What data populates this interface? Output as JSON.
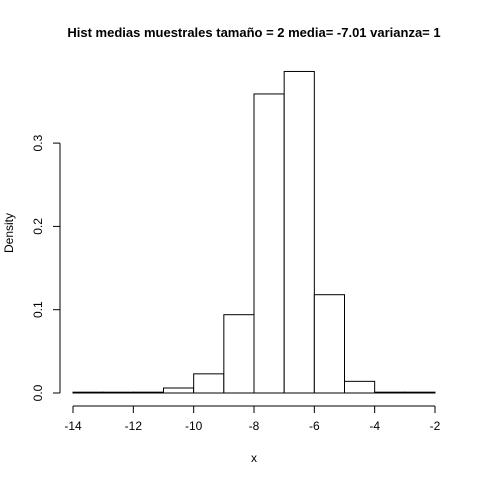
{
  "chart_data": {
    "type": "bar",
    "title": "Hist medias muestrales  tamaño =  2 media= -7.01 varianza= 1",
    "xlabel": "x",
    "ylabel": "Density",
    "xlim": [
      -14,
      -2
    ],
    "ylim": [
      0,
      0.3
    ],
    "x_ticks": [
      "-14",
      "-12",
      "-10",
      "-8",
      "-6",
      "-4",
      "-2"
    ],
    "y_ticks": [
      "0.0",
      "0.1",
      "0.2",
      "0.3"
    ],
    "bins": [
      {
        "start": -14,
        "end": -13,
        "density": 0.001
      },
      {
        "start": -13,
        "end": -12,
        "density": 0.0
      },
      {
        "start": -12,
        "end": -11,
        "density": 0.001
      },
      {
        "start": -11,
        "end": -10,
        "density": 0.006
      },
      {
        "start": -10,
        "end": -9,
        "density": 0.023
      },
      {
        "start": -9,
        "end": -8,
        "density": 0.094
      },
      {
        "start": -8,
        "end": -7,
        "density": 0.359
      },
      {
        "start": -7,
        "end": -6,
        "density": 0.386
      },
      {
        "start": -6,
        "end": -5,
        "density": 0.118
      },
      {
        "start": -5,
        "end": -4,
        "density": 0.014
      },
      {
        "start": -4,
        "end": -3,
        "density": 0.001
      },
      {
        "start": -3,
        "end": -2,
        "density": 0.001
      }
    ],
    "grid": false
  }
}
